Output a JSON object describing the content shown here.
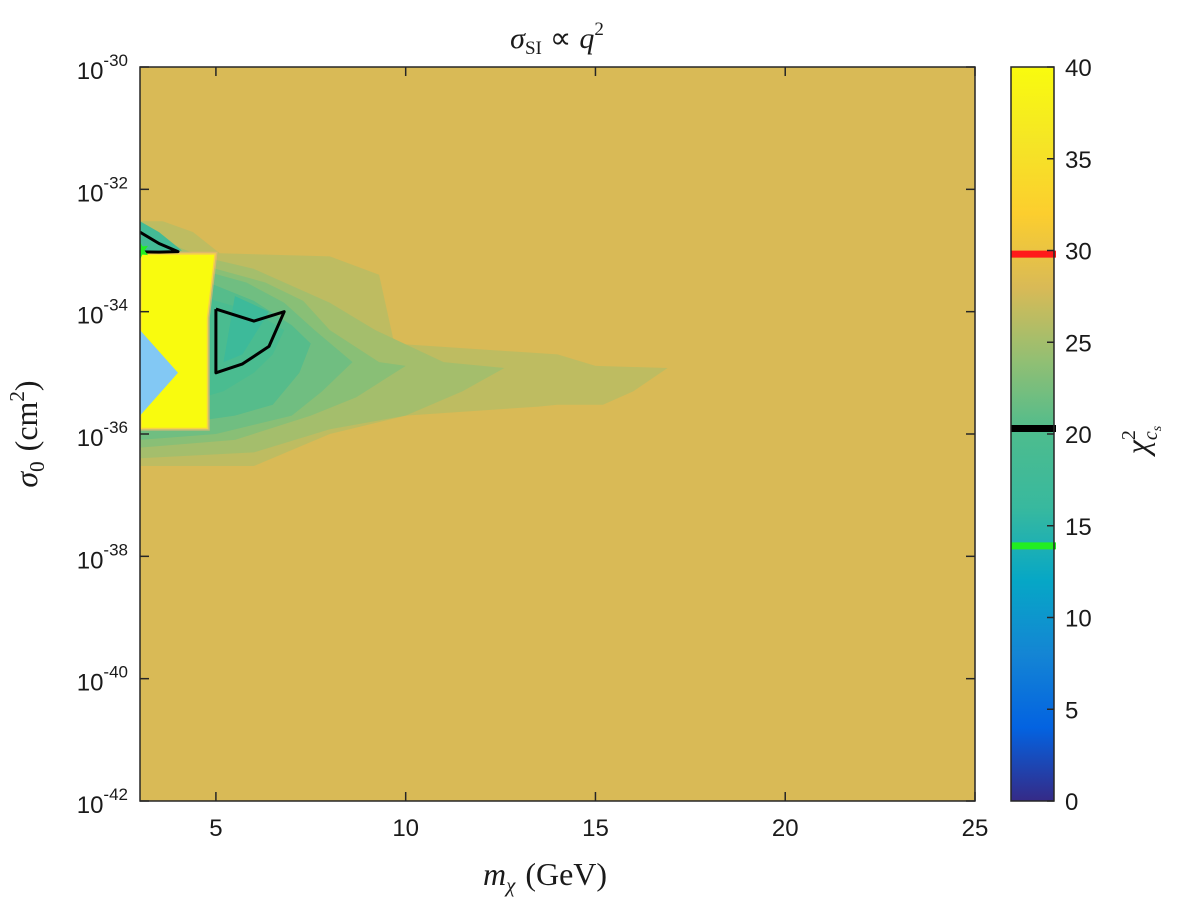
{
  "chart_data": {
    "type": "heatmap",
    "title": "σ_SI ∝ q²",
    "title_parts": {
      "sym": "σ",
      "sub": "SI",
      "rel": "∝",
      "var": "q",
      "sup": "2"
    },
    "xlabel": "m_χ (GeV)",
    "xlabel_parts": {
      "sym": "m",
      "sub": "χ",
      "unit": "(GeV)"
    },
    "ylabel": "σ_0 (cm²)",
    "ylabel_parts": {
      "sym": "σ",
      "sub": "0",
      "unit": "(cm",
      "sup": "2",
      "close": ")"
    },
    "colorbar_label": "χ²_cs",
    "colorbar_label_parts": {
      "sym": "χ",
      "sup": "2",
      "sub": "c",
      "subsub": "s"
    },
    "xlim": [
      3,
      25
    ],
    "ylim": [
      1e-42,
      1e-30
    ],
    "y_scale": "log",
    "x_ticks": [
      5,
      10,
      15,
      20,
      25
    ],
    "x_tick_labels": [
      "5",
      "10",
      "15",
      "20",
      "25"
    ],
    "y_ticks": [
      1e-42,
      1e-40,
      1e-38,
      1e-36,
      1e-34,
      1e-32,
      1e-30
    ],
    "y_tick_labels": [
      {
        "base": "10",
        "exp": "-42"
      },
      {
        "base": "10",
        "exp": "-40"
      },
      {
        "base": "10",
        "exp": "-38"
      },
      {
        "base": "10",
        "exp": "-36"
      },
      {
        "base": "10",
        "exp": "-34"
      },
      {
        "base": "10",
        "exp": "-32"
      },
      {
        "base": "10",
        "exp": "-30"
      }
    ],
    "colorbar": {
      "range": [
        0,
        40
      ],
      "ticks": [
        0,
        5,
        10,
        15,
        20,
        25,
        30,
        35,
        40
      ],
      "tick_labels": [
        "0",
        "5",
        "10",
        "15",
        "20",
        "25",
        "30",
        "35",
        "40"
      ],
      "markers": [
        {
          "value": 29.8,
          "color": "#ff1a1a"
        },
        {
          "value": 20.3,
          "color": "#000000"
        },
        {
          "value": 13.9,
          "color": "#22ee22"
        }
      ]
    },
    "background_chi2": 28,
    "layers": [
      {
        "chi2": 26.5,
        "polygon": [
          [
            3,
            3e-33
          ],
          [
            3.6,
            3e-33
          ],
          [
            4.4,
            2e-33
          ],
          [
            5.1,
            9e-34
          ],
          [
            8,
            8e-34
          ],
          [
            9.3,
            4e-34
          ],
          [
            9.7,
            3e-35
          ],
          [
            14,
            2e-35
          ],
          [
            15,
            1.3e-35
          ],
          [
            16.9,
            1.2e-35
          ],
          [
            16,
            5e-36
          ],
          [
            15.2,
            3e-36
          ],
          [
            14,
            3e-36
          ],
          [
            13.5,
            2.8e-36
          ],
          [
            10,
            2e-36
          ],
          [
            8,
            1e-36
          ],
          [
            6,
            3e-37
          ],
          [
            3,
            3e-37
          ]
        ]
      },
      {
        "chi2": 25,
        "polygon": [
          [
            3,
            1.5e-33
          ],
          [
            3.8,
            1.3e-33
          ],
          [
            4.6,
            8e-34
          ],
          [
            6,
            5e-34
          ],
          [
            8,
            1.4e-34
          ],
          [
            9.2,
            5e-35
          ],
          [
            11,
            1.5e-35
          ],
          [
            12.6,
            1.2e-35
          ],
          [
            11.5,
            5e-36
          ],
          [
            10,
            2e-36
          ],
          [
            8,
            1.2e-36
          ],
          [
            6,
            5e-37
          ],
          [
            3,
            4e-37
          ]
        ]
      },
      {
        "chi2": 23.5,
        "polygon": [
          [
            3,
            9e-34
          ],
          [
            4,
            8e-34
          ],
          [
            5,
            5e-34
          ],
          [
            6.3,
            3e-34
          ],
          [
            7.3,
            1.5e-34
          ],
          [
            8,
            5e-35
          ],
          [
            9.3,
            1.5e-35
          ],
          [
            10,
            1.3e-35
          ],
          [
            8.7,
            4e-36
          ],
          [
            7.5,
            2e-36
          ],
          [
            5.5,
            8e-37
          ],
          [
            3,
            6e-37
          ]
        ]
      },
      {
        "chi2": 22,
        "polygon": [
          [
            3,
            8e-34
          ],
          [
            4.5,
            5e-34
          ],
          [
            5.8,
            3e-34
          ],
          [
            6.8,
            1.4e-34
          ],
          [
            7.6,
            5e-35
          ],
          [
            8.6,
            1.5e-35
          ],
          [
            7.8,
            5e-36
          ],
          [
            7,
            2e-36
          ],
          [
            5,
            1e-36
          ],
          [
            3,
            8e-37
          ]
        ]
      },
      {
        "chi2": 20.5,
        "polygon": [
          [
            3,
            6e-34
          ],
          [
            4.8,
            3e-34
          ],
          [
            6,
            1.5e-34
          ],
          [
            7,
            6e-35
          ],
          [
            7.5,
            3e-35
          ],
          [
            7.2,
            1e-35
          ],
          [
            6.5,
            3e-36
          ],
          [
            5.5,
            2e-36
          ],
          [
            3,
            1.2e-36
          ]
        ]
      },
      {
        "chi2": 19.5,
        "polygon": [
          [
            3,
            4.5e-34
          ],
          [
            5,
            1.5e-34
          ],
          [
            6,
            1e-34
          ],
          [
            6.8,
            5e-35
          ],
          [
            6.5,
            2e-35
          ],
          [
            6,
            1e-35
          ],
          [
            5.2,
            5e-36
          ],
          [
            3,
            2e-36
          ]
        ]
      },
      {
        "chi2": 18,
        "polygon": [
          [
            3,
            3e-33
          ],
          [
            3.5,
            2e-33
          ],
          [
            4.1,
            1e-33
          ],
          [
            3.5,
            9e-34
          ],
          [
            3,
            9e-34
          ]
        ]
      },
      {
        "chi2": 17,
        "polygon": [
          [
            5.5,
            1.8e-34
          ],
          [
            6.4,
            1e-34
          ],
          [
            5.7,
            2e-35
          ],
          [
            5.2,
            1.5e-35
          ]
        ]
      },
      {
        "chi2": 40,
        "polygon": [
          [
            3,
            9e-34
          ],
          [
            5,
            9e-34
          ],
          [
            4.8,
            8e-35
          ],
          [
            4.8,
            1.2e-36
          ],
          [
            3,
            1.2e-36
          ]
        ]
      },
      {
        "chi2": 2,
        "fill": "#82c8f4",
        "polygon": [
          [
            3,
            5e-35
          ],
          [
            4,
            1e-35
          ],
          [
            3,
            2e-36
          ]
        ]
      }
    ],
    "contours": [
      {
        "color": "#000000",
        "points": [
          [
            3,
            2e-33
          ],
          [
            3.5,
            1.3e-33
          ],
          [
            4,
            9.6e-34
          ],
          [
            3.5,
            9.4e-34
          ],
          [
            3,
            9.5e-34
          ]
        ]
      },
      {
        "color": "#000000",
        "points": [
          [
            5,
            1.1e-34
          ],
          [
            6,
            7e-35
          ],
          [
            6.8,
            1e-34
          ],
          [
            6.4,
            2.7e-35
          ],
          [
            5.7,
            1.4e-35
          ],
          [
            5,
            1e-35
          ],
          [
            5,
            1.1e-34
          ]
        ]
      }
    ],
    "best_fit": {
      "x": 3,
      "y": 1e-33,
      "color": "#22ee22"
    },
    "grid": false,
    "legend": "none"
  }
}
